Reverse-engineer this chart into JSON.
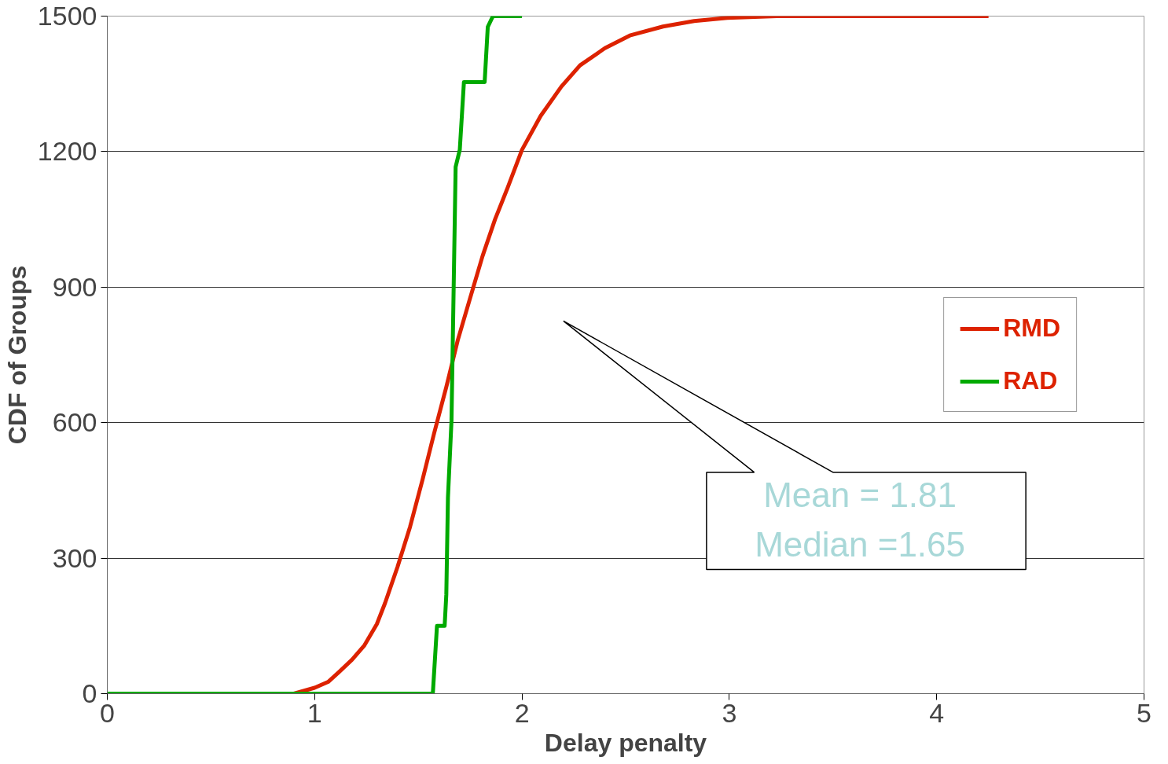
{
  "chart_data": {
    "type": "line",
    "xlabel": "Delay penalty",
    "ylabel": "CDF of Groups",
    "xlim": [
      0,
      5
    ],
    "xticks": [
      0,
      1,
      2,
      3,
      4,
      5
    ],
    "ylim": [
      0,
      1500
    ],
    "yticks": [
      0,
      300,
      600,
      900,
      1200,
      1500
    ],
    "grid": "y",
    "legend": "right",
    "line_style": "solid",
    "marker": "none",
    "annotations": [
      "Mean = 1.81",
      "Median =1.65"
    ],
    "series": [
      {
        "name": "RMD",
        "color": "#dd2200",
        "x": [
          0.9,
          1.0,
          1.065,
          1.12,
          1.18,
          1.24,
          1.3,
          1.34,
          1.4,
          1.46,
          1.52,
          1.576,
          1.635,
          1.69,
          1.75,
          1.81,
          1.87,
          1.93,
          2.0,
          2.09,
          2.19,
          2.28,
          2.4,
          2.52,
          2.68,
          2.83,
          2.99,
          3.23,
          4.25
        ],
        "values": [
          0,
          13,
          26,
          49,
          75,
          107,
          154,
          201,
          281,
          369,
          473,
          576,
          679,
          782,
          876,
          969,
          1050,
          1119,
          1204,
          1279,
          1344,
          1391,
          1429,
          1457,
          1477,
          1489,
          1496,
          1500,
          1500
        ]
      },
      {
        "name": "RAD",
        "color": "#00aa00",
        "x": [
          0,
          1.57,
          1.59,
          1.627,
          1.635,
          1.643,
          1.66,
          1.68,
          1.7,
          1.72,
          1.82,
          1.835,
          1.86,
          2.0
        ],
        "values": [
          0,
          0,
          150,
          150,
          219,
          435,
          604,
          1166,
          1204,
          1354,
          1354,
          1476,
          1500,
          1500
        ]
      }
    ]
  }
}
